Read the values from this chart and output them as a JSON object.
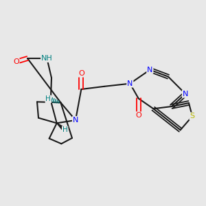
{
  "bg_color": "#e8e8e8",
  "bond_color": "#1a1a1a",
  "N_color": "#0000ff",
  "O_color": "#ff0000",
  "S_color": "#b8b800",
  "NH_color": "#008080",
  "H_color": "#008080",
  "lw": 1.5,
  "lw_double": 1.3,
  "fig_w": 3.0,
  "fig_h": 3.0,
  "dpi": 100
}
